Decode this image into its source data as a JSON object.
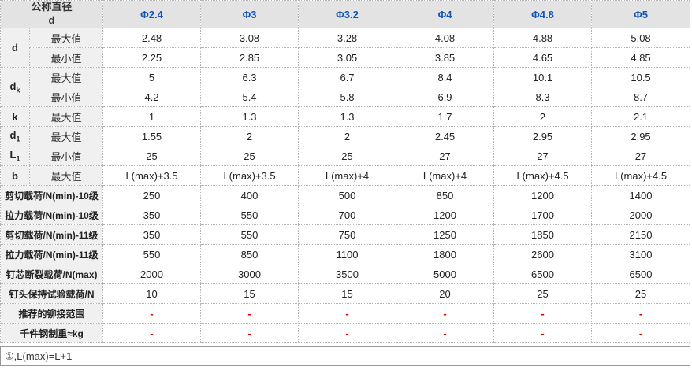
{
  "colors": {
    "accent_blue": "#1456b8",
    "dash_red": "#dd0000",
    "header_bg": "#e3e3e3",
    "label_bg": "#f0f0f0"
  },
  "table": {
    "corner_header": {
      "line1": "公称直径",
      "line2": "d"
    },
    "columns": [
      "Φ2.4",
      "Φ3",
      "Φ3.2",
      "Φ4",
      "Φ4.8",
      "Φ5"
    ],
    "rows": [
      {
        "symbol": {
          "base": "d",
          "sub": ""
        },
        "rowspan": 2,
        "sub": "最大值",
        "values": [
          "2.48",
          "3.08",
          "3.28",
          "4.08",
          "4.88",
          "5.08"
        ]
      },
      {
        "sub": "最小值",
        "values": [
          "2.25",
          "2.85",
          "3.05",
          "3.85",
          "4.65",
          "4.85"
        ]
      },
      {
        "symbol": {
          "base": "d",
          "sub": "k"
        },
        "rowspan": 2,
        "sub": "最大值",
        "values": [
          "5",
          "6.3",
          "6.7",
          "8.4",
          "10.1",
          "10.5"
        ]
      },
      {
        "sub": "最小值",
        "values": [
          "4.2",
          "5.4",
          "5.8",
          "6.9",
          "8.3",
          "8.7"
        ]
      },
      {
        "symbol": {
          "base": "k",
          "sub": ""
        },
        "rowspan": 1,
        "sub": "最大值",
        "values": [
          "1",
          "1.3",
          "1.3",
          "1.7",
          "2",
          "2.1"
        ]
      },
      {
        "symbol": {
          "base": "d",
          "sub": "1"
        },
        "rowspan": 1,
        "sub": "最大值",
        "values": [
          "1.55",
          "2",
          "2",
          "2.45",
          "2.95",
          "2.95"
        ]
      },
      {
        "symbol": {
          "base": "L",
          "sub": "1"
        },
        "rowspan": 1,
        "sub": "最小值",
        "values": [
          "25",
          "25",
          "25",
          "27",
          "27",
          "27"
        ]
      },
      {
        "symbol": {
          "base": "b",
          "sub": ""
        },
        "rowspan": 1,
        "sub": "最大值",
        "values": [
          "L(max)+3.5",
          "L(max)+3.5",
          "L(max)+4",
          "L(max)+4",
          "L(max)+4.5",
          "L(max)+4.5"
        ]
      },
      {
        "label": "剪切载荷/N(min)-10级",
        "values": [
          "250",
          "400",
          "500",
          "850",
          "1200",
          "1400"
        ]
      },
      {
        "label": "拉力载荷/N(min)-10级",
        "values": [
          "350",
          "550",
          "700",
          "1200",
          "1700",
          "2000"
        ]
      },
      {
        "label": "剪切载荷/N(min)-11级",
        "values": [
          "350",
          "550",
          "750",
          "1250",
          "1850",
          "2150"
        ]
      },
      {
        "label": "拉力载荷/N(min)-11级",
        "values": [
          "550",
          "850",
          "1100",
          "1800",
          "2600",
          "3100"
        ]
      },
      {
        "label": "钉芯断裂载荷/N(max)",
        "values": [
          "2000",
          "3000",
          "3500",
          "5000",
          "6500",
          "6500"
        ]
      },
      {
        "label": "钉头保持试验载荷/N",
        "values": [
          "10",
          "15",
          "15",
          "20",
          "25",
          "25"
        ]
      },
      {
        "label": "推荐的铆接范围",
        "values": [
          "-",
          "-",
          "-",
          "-",
          "-",
          "-"
        ]
      },
      {
        "label": "千件钢制重≈kg",
        "values": [
          "-",
          "-",
          "-",
          "-",
          "-",
          "-"
        ]
      }
    ]
  },
  "footnote": "①,L(max)=L+1"
}
